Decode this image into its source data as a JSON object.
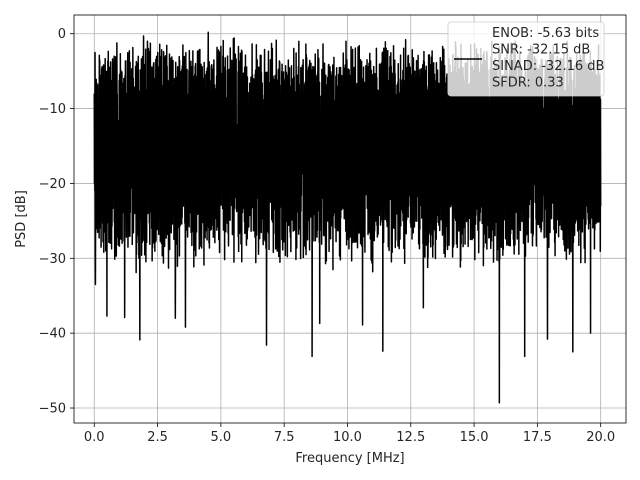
{
  "chart_data": {
    "type": "line",
    "title": "",
    "xlabel": "Frequency [MHz]",
    "ylabel": "PSD [dB]",
    "xlim": [
      -0.8,
      21.0
    ],
    "ylim": [
      -52.0,
      2.5
    ],
    "xticks": [
      0.0,
      2.5,
      5.0,
      7.5,
      10.0,
      12.5,
      15.0,
      17.5,
      20.0
    ],
    "xtick_labels": [
      "0.0",
      "2.5",
      "5.0",
      "7.5",
      "10.0",
      "12.5",
      "15.0",
      "17.5",
      "20.0"
    ],
    "yticks": [
      0,
      -10,
      -20,
      -30,
      -40,
      -50
    ],
    "ytick_labels": [
      "0",
      "−10",
      "−20",
      "−30",
      "−40",
      "−50"
    ],
    "grid": true,
    "legend_position": "top-right",
    "series": [
      {
        "name": "ENOB: -5.63 bits\nSNR: -32.15 dB\nSINAD: -32.16 dB\nSFDR: 0.33",
        "color": "#000000",
        "description_of_shape": "dense noise spectrum spanning 0 to 20 MHz, mostly between -30 and -2 dB",
        "x": [
          0.0,
          20.0
        ],
        "band_upper_typical": -3.5,
        "band_lower_typical": -28.0,
        "peak_spikes": [
          {
            "x": 1.95,
            "y": -0.3
          },
          {
            "x": 4.5,
            "y": 0.2
          },
          {
            "x": 2.1,
            "y": -1.0
          },
          {
            "x": 12.3,
            "y": -0.8
          },
          {
            "x": 15.7,
            "y": -1.0
          },
          {
            "x": 3.5,
            "y": -1.5
          },
          {
            "x": 7.0,
            "y": -1.3
          },
          {
            "x": 11.4,
            "y": -1.2
          }
        ],
        "dip_spikes": [
          {
            "x": 0.05,
            "y": -33.5
          },
          {
            "x": 0.5,
            "y": -37.7
          },
          {
            "x": 1.2,
            "y": -37.9
          },
          {
            "x": 1.8,
            "y": -40.9
          },
          {
            "x": 3.2,
            "y": -38.0
          },
          {
            "x": 3.6,
            "y": -39.2
          },
          {
            "x": 6.8,
            "y": -41.6
          },
          {
            "x": 8.6,
            "y": -43.1
          },
          {
            "x": 8.9,
            "y": -38.7
          },
          {
            "x": 10.6,
            "y": -38.9
          },
          {
            "x": 11.4,
            "y": -42.4
          },
          {
            "x": 13.0,
            "y": -36.6
          },
          {
            "x": 16.0,
            "y": -49.3
          },
          {
            "x": 17.0,
            "y": -41.2
          },
          {
            "x": 17.0,
            "y": -43.1
          },
          {
            "x": 17.9,
            "y": -40.8
          },
          {
            "x": 18.9,
            "y": -42.5
          },
          {
            "x": 19.6,
            "y": -40.0
          }
        ]
      }
    ]
  }
}
